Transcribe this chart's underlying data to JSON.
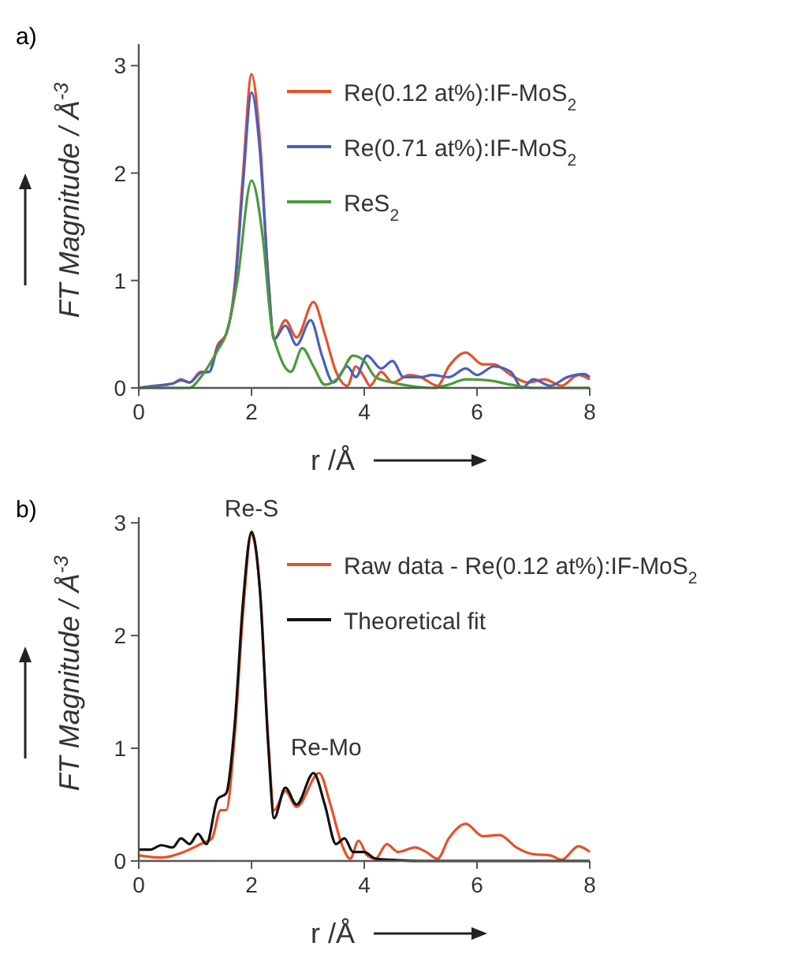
{
  "chart_data": [
    {
      "type": "line",
      "title": "a)",
      "xlabel": "r /Å",
      "ylabel": "FT Magnitude / Å$^{-3}$",
      "xlim": [
        0,
        8
      ],
      "ylim": [
        0,
        3.2
      ],
      "xticks": [
        0,
        2,
        4,
        6,
        8
      ],
      "yticks": [
        0,
        1,
        2,
        3
      ],
      "legend": "top right",
      "grid": false,
      "line_style": "solid",
      "marker": "none",
      "series": [
        {
          "name": "Re(0.12 at%):IF-MoS$_{2}$",
          "color": "#e8502a",
          "x": [
            0,
            0.3,
            0.6,
            0.75,
            0.9,
            1.1,
            1.25,
            1.4,
            1.55,
            1.7,
            1.85,
            2.0,
            2.15,
            2.3,
            2.4,
            2.6,
            2.8,
            3.1,
            3.3,
            3.5,
            3.7,
            3.85,
            4.0,
            4.1,
            4.3,
            4.5,
            4.8,
            5.0,
            5.3,
            5.5,
            5.8,
            6.1,
            6.3,
            6.6,
            6.9,
            7.2,
            7.5,
            7.8,
            8
          ],
          "values": [
            0,
            0.02,
            0.04,
            0.08,
            0.05,
            0.15,
            0.15,
            0.4,
            0.5,
            0.95,
            2.0,
            2.92,
            2.3,
            1.0,
            0.45,
            0.63,
            0.47,
            0.8,
            0.5,
            0.15,
            0.02,
            0.2,
            0.1,
            0.02,
            0.15,
            0.05,
            0.12,
            0.1,
            0.02,
            0.2,
            0.33,
            0.22,
            0.22,
            0.12,
            0.05,
            0.08,
            0.02,
            0.12,
            0.08
          ]
        },
        {
          "name": "Re(0.71 at%):IF-MoS$_{2}$",
          "color": "#4a5fc0",
          "x": [
            0,
            0.3,
            0.6,
            0.75,
            0.9,
            1.1,
            1.25,
            1.4,
            1.55,
            1.7,
            1.85,
            2.0,
            2.15,
            2.3,
            2.4,
            2.6,
            2.8,
            3.05,
            3.25,
            3.45,
            3.7,
            3.85,
            4.05,
            4.3,
            4.5,
            4.7,
            5.0,
            5.2,
            5.5,
            5.8,
            6.0,
            6.3,
            6.6,
            6.8,
            7.0,
            7.3,
            7.6,
            7.9,
            8
          ],
          "values": [
            0,
            0.02,
            0.04,
            0.07,
            0.05,
            0.14,
            0.15,
            0.38,
            0.5,
            0.9,
            1.9,
            2.75,
            2.2,
            1.0,
            0.45,
            0.58,
            0.4,
            0.63,
            0.3,
            0.05,
            0.2,
            0.1,
            0.3,
            0.18,
            0.25,
            0.1,
            0.1,
            0.12,
            0.1,
            0.18,
            0.12,
            0.2,
            0.15,
            0,
            0.08,
            0.02,
            0.1,
            0.13,
            0.1
          ]
        },
        {
          "name": "ReS$_{2}$",
          "color": "#4c9a3a",
          "x": [
            0,
            0.9,
            1.1,
            1.4,
            1.55,
            1.75,
            2.0,
            2.2,
            2.35,
            2.5,
            2.7,
            2.9,
            3.1,
            3.3,
            3.55,
            3.8,
            4.0,
            4.2,
            4.5,
            4.8,
            5.2,
            5.5,
            5.8,
            6.2,
            6.6,
            7,
            8
          ],
          "values": [
            0,
            0,
            0.1,
            0.35,
            0.5,
            1.0,
            1.93,
            1.4,
            0.6,
            0.3,
            0.15,
            0.37,
            0.2,
            0.03,
            0.1,
            0.3,
            0.25,
            0.1,
            0.05,
            0.02,
            0,
            0.03,
            0.08,
            0.07,
            0.03,
            0,
            0
          ]
        }
      ]
    },
    {
      "type": "line",
      "title": "b)",
      "xlabel": "r /Å",
      "ylabel": "FT Magnitude / Å$^{-3}$",
      "xlim": [
        0,
        8
      ],
      "ylim": [
        0,
        3.05
      ],
      "xticks": [
        0,
        2,
        4,
        6,
        8
      ],
      "yticks": [
        0,
        1,
        2,
        3
      ],
      "legend": "top right",
      "grid": false,
      "line_style": "solid",
      "marker": "none",
      "annotations": [
        {
          "text": "Re-S",
          "x": 2,
          "y": 2.92
        },
        {
          "text": "Re-Mo",
          "x": 3.1,
          "y": 0.8
        }
      ],
      "series": [
        {
          "name": "Raw data - Re(0.12 at%):IF-MoS$_{2}$",
          "color": "#e8502a",
          "x": [
            0,
            0.4,
            0.8,
            1.1,
            1.3,
            1.45,
            1.55,
            1.7,
            1.85,
            2.0,
            2.15,
            2.3,
            2.4,
            2.6,
            2.8,
            3.2,
            3.4,
            3.6,
            3.75,
            3.9,
            4.05,
            4.2,
            4.4,
            4.6,
            4.9,
            5.1,
            5.3,
            5.5,
            5.8,
            6.1,
            6.4,
            6.7,
            7.0,
            7.3,
            7.5,
            7.8,
            8
          ],
          "values": [
            0.05,
            0.03,
            0.08,
            0.15,
            0.2,
            0.45,
            0.45,
            1.1,
            2.2,
            2.9,
            2.4,
            1.05,
            0.45,
            0.62,
            0.48,
            0.78,
            0.5,
            0.15,
            0.02,
            0.18,
            0.05,
            0.02,
            0.15,
            0.08,
            0.12,
            0.08,
            0.02,
            0.2,
            0.33,
            0.22,
            0.23,
            0.12,
            0.06,
            0.05,
            0.01,
            0.13,
            0.08
          ]
        },
        {
          "name": "Theoretical fit",
          "color": "#111111",
          "x": [
            0,
            0.2,
            0.4,
            0.6,
            0.75,
            0.9,
            1.05,
            1.2,
            1.4,
            1.55,
            1.7,
            1.85,
            2.0,
            2.15,
            2.3,
            2.4,
            2.6,
            2.8,
            3.1,
            3.3,
            3.5,
            3.65,
            3.8,
            4.0,
            4.2,
            4.5,
            5,
            8
          ],
          "values": [
            0.1,
            0.1,
            0.14,
            0.12,
            0.2,
            0.15,
            0.24,
            0.15,
            0.55,
            0.6,
            1.2,
            2.3,
            2.92,
            2.4,
            1.0,
            0.38,
            0.65,
            0.5,
            0.78,
            0.5,
            0.15,
            0.2,
            0.08,
            0.08,
            0.02,
            0.01,
            0,
            0
          ]
        }
      ]
    }
  ]
}
